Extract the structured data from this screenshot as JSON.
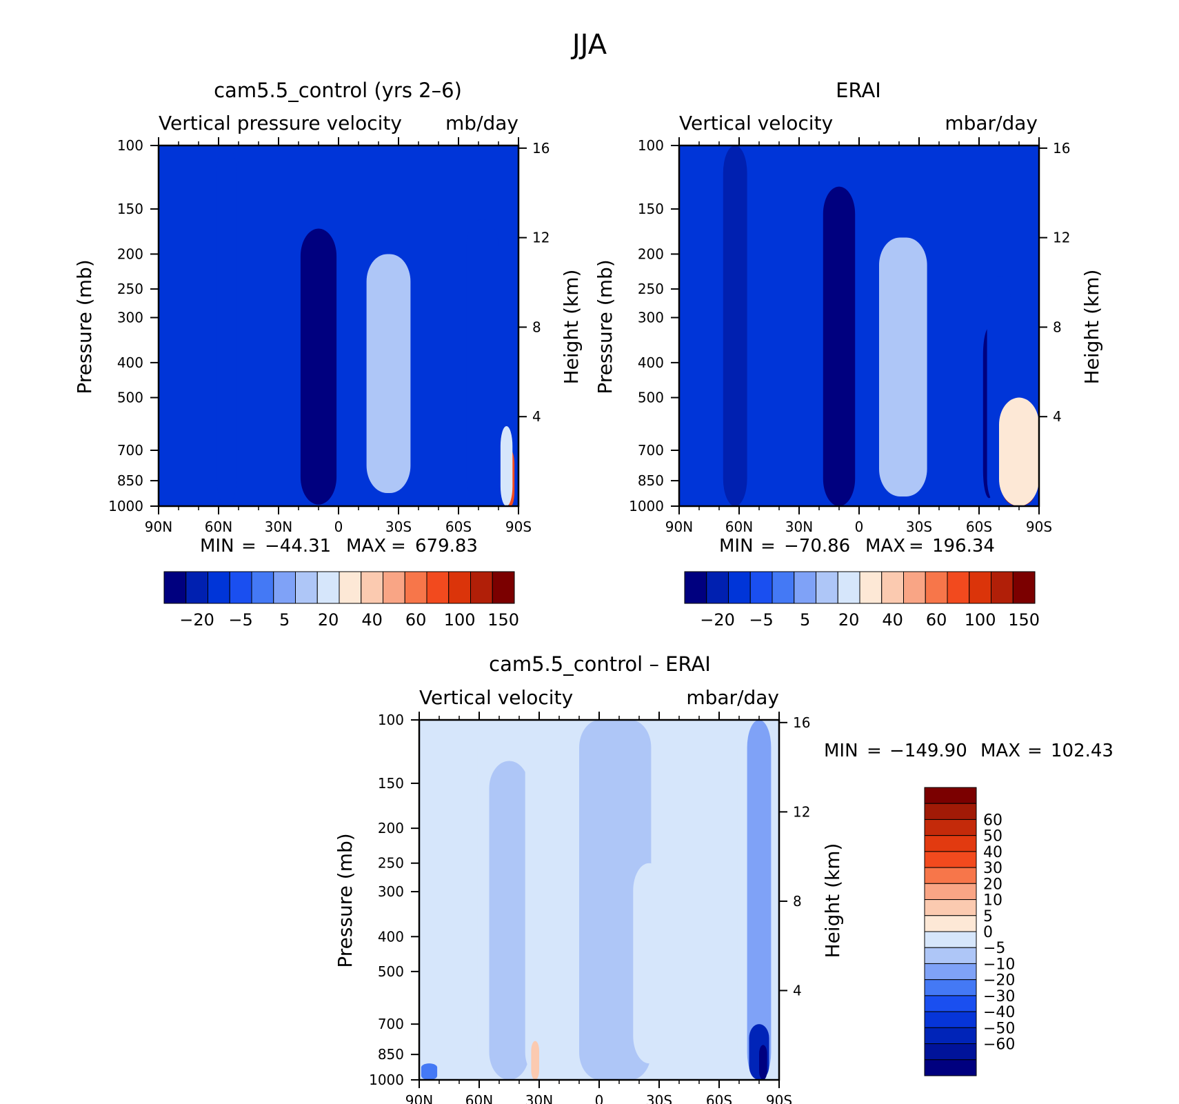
{
  "figure": {
    "title": "JJA"
  },
  "colors": {
    "blue_red_16": [
      "#00007f",
      "#0020b0",
      "#0035d8",
      "#1a4ff0",
      "#4479f5",
      "#7fa2f7",
      "#aec6f7",
      "#d6e6fb",
      "#fde8d6",
      "#fbcab0",
      "#f9a585",
      "#f7764a",
      "#f24a1e",
      "#db340a",
      "#b11f08",
      "#7b0000"
    ],
    "blue_red_18": [
      "#00007f",
      "#00139a",
      "#0024b8",
      "#0635d8",
      "#1a4ff0",
      "#4479f5",
      "#7fa2f7",
      "#aec6f7",
      "#d6e6fb",
      "#fde8d6",
      "#fbcab0",
      "#f9a585",
      "#f7764a",
      "#f24a1e",
      "#e23a10",
      "#c42a0a",
      "#a11a06",
      "#7b0000"
    ]
  },
  "chart_data": [
    {
      "type": "heatmap",
      "panel": "model",
      "title": "cam5.5_control (yrs 2–6)",
      "left_string": "Vertical pressure velocity",
      "right_string": "mb/day",
      "xlabel": "",
      "ylabel": "Pressure (mb)",
      "y2label": "Height (km)",
      "x_ticks": [
        "90N",
        "60N",
        "30N",
        "0",
        "30S",
        "60S",
        "90S"
      ],
      "y_ticks": [
        100,
        150,
        200,
        250,
        300,
        400,
        500,
        700,
        850,
        1000
      ],
      "y2_ticks": [
        4,
        8,
        12,
        16
      ],
      "ylim": [
        1000,
        100
      ],
      "xlim": [
        90,
        -90
      ],
      "min_max_text": {
        "min_label": "MIN",
        "min": "−44.31",
        "max_label": "MAX",
        "max": "679.83",
        "eq": "="
      },
      "colorbar": {
        "orientation": "horizontal",
        "palette": "blue_red_16",
        "labels": [
          "−20",
          "−5",
          "5",
          "20",
          "40",
          "60",
          "100",
          "150"
        ]
      },
      "features": [
        {
          "lat": 10,
          "halfwidth": 4,
          "ptop": 220,
          "pbot": 960,
          "value": -40
        },
        {
          "lat": 10,
          "halfwidth": 9,
          "ptop": 170,
          "pbot": 990,
          "value": -22
        },
        {
          "lat": 56,
          "halfwidth": 5,
          "ptop": 100,
          "pbot": 1000,
          "value": -9
        },
        {
          "lat": -25,
          "halfwidth": 6,
          "ptop": 270,
          "pbot": 840,
          "value": 25
        },
        {
          "lat": -25,
          "halfwidth": 11,
          "ptop": 200,
          "pbot": 920,
          "value": 12
        },
        {
          "lat": -68,
          "halfwidth": 3,
          "ptop": 430,
          "pbot": 940,
          "value": -35
        },
        {
          "lat": -72,
          "halfwidth": 8,
          "ptop": 160,
          "pbot": 990,
          "value": -9
        },
        {
          "lat": -86,
          "halfwidth": 2,
          "ptop": 700,
          "pbot": 1000,
          "value": 90
        },
        {
          "lat": -84,
          "halfwidth": 3,
          "ptop": 600,
          "pbot": 1000,
          "value": 20
        }
      ]
    },
    {
      "type": "heatmap",
      "panel": "obs",
      "title": "ERAI",
      "left_string": "Vertical velocity",
      "right_string": "mbar/day",
      "xlabel": "",
      "ylabel": "Pressure (mb)",
      "y2label": "Height (km)",
      "x_ticks": [
        "90N",
        "60N",
        "30N",
        "0",
        "30S",
        "60S",
        "90S"
      ],
      "y_ticks": [
        100,
        150,
        200,
        250,
        300,
        400,
        500,
        700,
        850,
        1000
      ],
      "y2_ticks": [
        4,
        8,
        12,
        16
      ],
      "ylim": [
        1000,
        100
      ],
      "xlim": [
        90,
        -90
      ],
      "min_max_text": {
        "min_label": "MIN",
        "min": "−70.86",
        "max_label": "MAX",
        "max": "196.34",
        "eq": "="
      },
      "colorbar": {
        "orientation": "horizontal",
        "palette": "blue_red_16",
        "labels": [
          "−20",
          "−5",
          "5",
          "20",
          "40",
          "60",
          "100",
          "150"
        ]
      },
      "features": [
        {
          "lat": 10,
          "halfwidth": 4,
          "ptop": 200,
          "pbot": 980,
          "value": -55
        },
        {
          "lat": 10,
          "halfwidth": 8,
          "ptop": 130,
          "pbot": 1000,
          "value": -25
        },
        {
          "lat": 62,
          "halfwidth": 6,
          "ptop": 100,
          "pbot": 1000,
          "value": -12
        },
        {
          "lat": -22,
          "halfwidth": 6,
          "ptop": 300,
          "pbot": 880,
          "value": 25
        },
        {
          "lat": -22,
          "halfwidth": 12,
          "ptop": 180,
          "pbot": 940,
          "value": 12
        },
        {
          "lat": -65,
          "halfwidth": 3,
          "ptop": 320,
          "pbot": 950,
          "value": -25
        },
        {
          "lat": -70,
          "halfwidth": 6,
          "ptop": 230,
          "pbot": 1000,
          "value": -9
        },
        {
          "lat": -80,
          "halfwidth": 8,
          "ptop": 700,
          "pbot": 1000,
          "value": 120
        },
        {
          "lat": -80,
          "halfwidth": 10,
          "ptop": 500,
          "pbot": 1000,
          "value": 30
        }
      ]
    },
    {
      "type": "heatmap",
      "panel": "diff",
      "title": "cam5.5_control – ERAI",
      "left_string": "Vertical velocity",
      "right_string": "mbar/day",
      "xlabel": "",
      "ylabel": "Pressure (mb)",
      "y2label": "Height (km)",
      "x_ticks": [
        "90N",
        "60N",
        "30N",
        "0",
        "30S",
        "60S",
        "90S"
      ],
      "y_ticks": [
        100,
        150,
        200,
        250,
        300,
        400,
        500,
        700,
        850,
        1000
      ],
      "y2_ticks": [
        4,
        8,
        12,
        16
      ],
      "ylim": [
        1000,
        100
      ],
      "xlim": [
        90,
        -90
      ],
      "min_max_text": {
        "min_label": "MIN",
        "min": "−149.90",
        "max_label": "MAX",
        "max": "102.43",
        "eq": "="
      },
      "colorbar": {
        "orientation": "vertical",
        "palette": "blue_red_18",
        "labels": [
          "60",
          "50",
          "40",
          "30",
          "20",
          "10",
          "5",
          "0",
          "−5",
          "−10",
          "−20",
          "−30",
          "−40",
          "−50",
          "−60"
        ]
      },
      "features": [
        {
          "lat": 75,
          "halfwidth": 14,
          "ptop": 100,
          "pbot": 1000,
          "value": 3
        },
        {
          "lat": 45,
          "halfwidth": 10,
          "ptop": 130,
          "pbot": 1000,
          "value": -3
        },
        {
          "lat": 22,
          "halfwidth": 15,
          "ptop": 100,
          "pbot": 1000,
          "value": 3
        },
        {
          "lat": -8,
          "halfwidth": 18,
          "ptop": 100,
          "pbot": 1000,
          "value": -3
        },
        {
          "lat": -25,
          "halfwidth": 8,
          "ptop": 250,
          "pbot": 900,
          "value": 3
        },
        {
          "lat": -62,
          "halfwidth": 7,
          "ptop": 100,
          "pbot": 1000,
          "value": 3
        },
        {
          "lat": -80,
          "halfwidth": 6,
          "ptop": 100,
          "pbot": 1000,
          "value": -7
        },
        {
          "lat": -80,
          "halfwidth": 5,
          "ptop": 700,
          "pbot": 1000,
          "value": -45
        },
        {
          "lat": -82,
          "halfwidth": 2,
          "ptop": 800,
          "pbot": 1000,
          "value": -70
        },
        {
          "lat": 32,
          "halfwidth": 2,
          "ptop": 780,
          "pbot": 1000,
          "value": 12
        },
        {
          "lat": 85,
          "halfwidth": 4,
          "ptop": 900,
          "pbot": 1000,
          "value": -12
        }
      ]
    }
  ]
}
